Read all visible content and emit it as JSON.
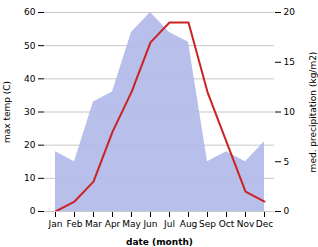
{
  "chart_data": {
    "type": "area",
    "xlabel": "date (month)",
    "ylabel": "max temp (C)",
    "y2label": "med. precipitation (kg/m2)",
    "categories": [
      "Jan",
      "Feb",
      "Mar",
      "Apr",
      "May",
      "Jun",
      "Jul",
      "Aug",
      "Sep",
      "Oct",
      "Nov",
      "Dec"
    ],
    "series": [
      {
        "type": "area",
        "color": "#b0b8e8",
        "values": [
          18,
          15,
          33,
          36,
          54,
          60,
          54,
          51,
          15,
          18,
          15,
          21
        ]
      },
      {
        "type": "line",
        "color": "#cc2222",
        "axis": "y2",
        "values": [
          0,
          1,
          3,
          8,
          12,
          17,
          19,
          19,
          12,
          7,
          2,
          1
        ]
      }
    ],
    "ylim": [
      0,
      60
    ],
    "yticks": [
      0,
      10,
      20,
      30,
      40,
      50,
      60
    ],
    "y2lim": [
      0,
      20
    ],
    "y2ticks": [
      0,
      5,
      10,
      15,
      20
    ],
    "grid": true
  }
}
